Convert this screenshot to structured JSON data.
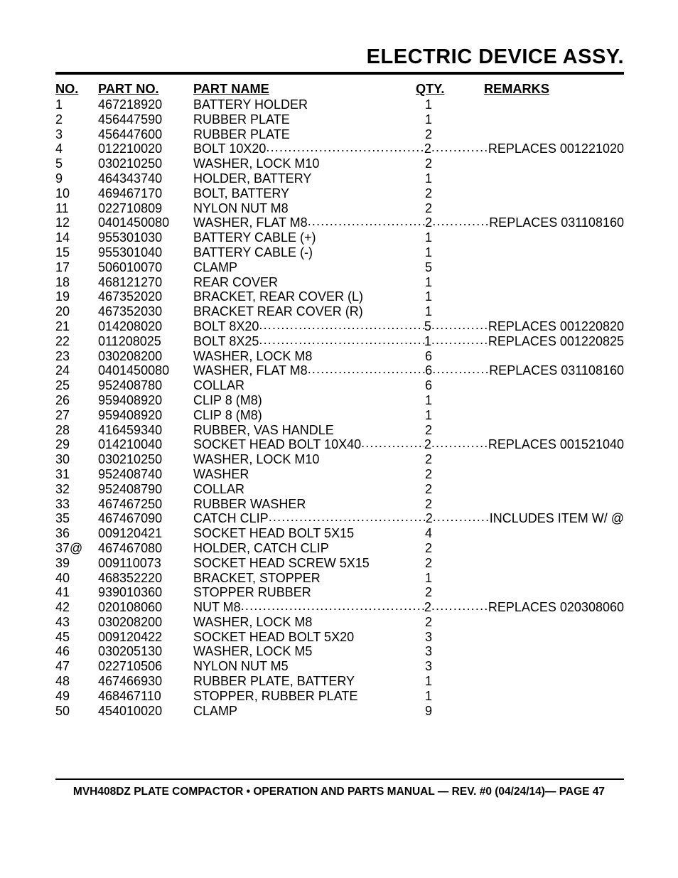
{
  "title": "Electric Device Assy.",
  "headers": {
    "no": "NO.",
    "partno": "PART NO.",
    "partname": "PART NAME",
    "qty": "QTY.",
    "remarks": "REMARKS"
  },
  "rows": [
    {
      "no": "1",
      "partno": "467218920",
      "name": "BATTERY HOLDER",
      "qty": "1",
      "remarks": "",
      "leader": false
    },
    {
      "no": "2",
      "partno": "456447590",
      "name": "RUBBER PLATE",
      "qty": "1",
      "remarks": "",
      "leader": false
    },
    {
      "no": "3",
      "partno": "456447600",
      "name": "RUBBER PLATE",
      "qty": "2",
      "remarks": "",
      "leader": false
    },
    {
      "no": "4",
      "partno": "012210020",
      "name": "BOLT 10X20",
      "qty": "2",
      "remarks": "REPLACES 001221020",
      "leader": true
    },
    {
      "no": "5",
      "partno": "030210250",
      "name": "WASHER, LOCK M10",
      "qty": "2",
      "remarks": "",
      "leader": false
    },
    {
      "no": "9",
      "partno": "464343740",
      "name": "HOLDER, BATTERY",
      "qty": "1",
      "remarks": "",
      "leader": false
    },
    {
      "no": "10",
      "partno": "469467170",
      "name": "BOLT, BATTERY",
      "qty": "2",
      "remarks": "",
      "leader": false
    },
    {
      "no": "11",
      "partno": "022710809",
      "name": "NYLON NUT M8",
      "qty": "2",
      "remarks": "",
      "leader": false
    },
    {
      "no": "12",
      "partno": " 0401450080",
      "name": "WASHER, FLAT M8 ",
      "qty": "2",
      "remarks": "REPLACES 031108160",
      "leader": true
    },
    {
      "no": "14",
      "partno": "955301030",
      "name": "BATTERY CABLE (+)",
      "qty": "1",
      "remarks": "",
      "leader": false
    },
    {
      "no": "15",
      "partno": "955301040",
      "name": "BATTERY CABLE (-)",
      "qty": "1",
      "remarks": "",
      "leader": false
    },
    {
      "no": "17",
      "partno": "506010070",
      "name": "CLAMP",
      "qty": "5",
      "remarks": "",
      "leader": false
    },
    {
      "no": "18",
      "partno": "468121270",
      "name": "REAR COVER",
      "qty": "1",
      "remarks": "",
      "leader": false
    },
    {
      "no": "19",
      "partno": "467352020",
      "name": "BRACKET, REAR COVER (L)",
      "qty": "1",
      "remarks": "",
      "leader": false
    },
    {
      "no": "20",
      "partno": "467352030",
      "name": "BRACKET REAR COVER (R)",
      "qty": "1",
      "remarks": "",
      "leader": false
    },
    {
      "no": "21",
      "partno": " 014208020",
      "name": "BOLT 8X20",
      "qty": "5",
      "remarks": "REPLACES 001220820",
      "leader": true
    },
    {
      "no": "22",
      "partno": " 011208025",
      "name": "BOLT 8X25",
      "qty": "1",
      "remarks": "REPLACES 001220825",
      "leader": true
    },
    {
      "no": "23",
      "partno": "030208200",
      "name": "WASHER, LOCK M8",
      "qty": "6",
      "remarks": "",
      "leader": false
    },
    {
      "no": "24",
      "partno": " 0401450080",
      "name": "WASHER, FLAT M8 ",
      "qty": "6",
      "remarks": "REPLACES 031108160",
      "leader": true
    },
    {
      "no": "25",
      "partno": "952408780",
      "name": "COLLAR",
      "qty": "6",
      "remarks": "",
      "leader": false
    },
    {
      "no": "26",
      "partno": "959408920",
      "name": "CLIP 8 (M8)",
      "qty": "1",
      "remarks": "",
      "leader": false
    },
    {
      "no": "27",
      "partno": "959408920",
      "name": "CLIP 8 (M8)",
      "qty": "1",
      "remarks": "",
      "leader": false
    },
    {
      "no": "28",
      "partno": "416459340",
      "name": "RUBBER, VAS HANDLE",
      "qty": "2",
      "remarks": "",
      "leader": false
    },
    {
      "no": "29",
      "partno": "014210040",
      "name": "SOCKET HEAD BOLT 10X40",
      "qty": "2",
      "remarks": "REPLACES 001521040",
      "leader": true
    },
    {
      "no": "30",
      "partno": "030210250",
      "name": "WASHER, LOCK M10",
      "qty": "2",
      "remarks": "",
      "leader": false
    },
    {
      "no": "31",
      "partno": "952408740",
      "name": "WASHER",
      "qty": "2",
      "remarks": "",
      "leader": false
    },
    {
      "no": "32",
      "partno": "952408790",
      "name": "COLLAR",
      "qty": "2",
      "remarks": "",
      "leader": false
    },
    {
      "no": "33",
      "partno": "467467250",
      "name": "RUBBER WASHER",
      "qty": "2",
      "remarks": "",
      "leader": false
    },
    {
      "no": "35",
      "partno": "467467090",
      "name": "CATCH CLIP ",
      "qty": "2",
      "remarks": "INCLUDES ITEM W/ @",
      "leader": true
    },
    {
      "no": "36",
      "partno": "009120421",
      "name": "SOCKET HEAD BOLT 5X15",
      "qty": "4",
      "remarks": "",
      "leader": false
    },
    {
      "no": "37@",
      "partno": "467467080",
      "name": "HOLDER, CATCH CLIP",
      "qty": "2",
      "remarks": "",
      "leader": false
    },
    {
      "no": "39",
      "partno": "009110073",
      "name": "SOCKET HEAD SCREW 5X15",
      "qty": "2",
      "remarks": "",
      "leader": false
    },
    {
      "no": "40",
      "partno": "468352220",
      "name": "BRACKET, STOPPER",
      "qty": "1",
      "remarks": "",
      "leader": false
    },
    {
      "no": "41",
      "partno": "939010360",
      "name": "STOPPER RUBBER",
      "qty": "2",
      "remarks": "",
      "leader": false
    },
    {
      "no": "42",
      "partno": "020108060",
      "name": "NUT M8 ",
      "qty": "2",
      "remarks": "REPLACES 020308060",
      "leader": true
    },
    {
      "no": "43",
      "partno": "030208200",
      "name": "WASHER, LOCK M8",
      "qty": "2",
      "remarks": "",
      "leader": false
    },
    {
      "no": "45",
      "partno": "009120422",
      "name": "SOCKET HEAD BOLT 5X20",
      "qty": "3",
      "remarks": "",
      "leader": false
    },
    {
      "no": "46",
      "partno": "030205130",
      "name": "WASHER, LOCK M5",
      "qty": "3",
      "remarks": "",
      "leader": false
    },
    {
      "no": "47",
      "partno": "022710506",
      "name": "NYLON NUT M5",
      "qty": "3",
      "remarks": "",
      "leader": false
    },
    {
      "no": "48",
      "partno": "467466930",
      "name": "RUBBER PLATE, BATTERY",
      "qty": "1",
      "remarks": "",
      "leader": false
    },
    {
      "no": "49",
      "partno": "468467110",
      "name": "STOPPER, RUBBER PLATE",
      "qty": "1",
      "remarks": "",
      "leader": false
    },
    {
      "no": "50",
      "partno": "454010020",
      "name": "CLAMP",
      "qty": "9",
      "remarks": "",
      "leader": false
    }
  ],
  "footer": "MVH408DZ PLATE COMPACTOR • OPERATION AND PARTS MANUAL — REV. #0 (04/24/14)— PAGE 47"
}
